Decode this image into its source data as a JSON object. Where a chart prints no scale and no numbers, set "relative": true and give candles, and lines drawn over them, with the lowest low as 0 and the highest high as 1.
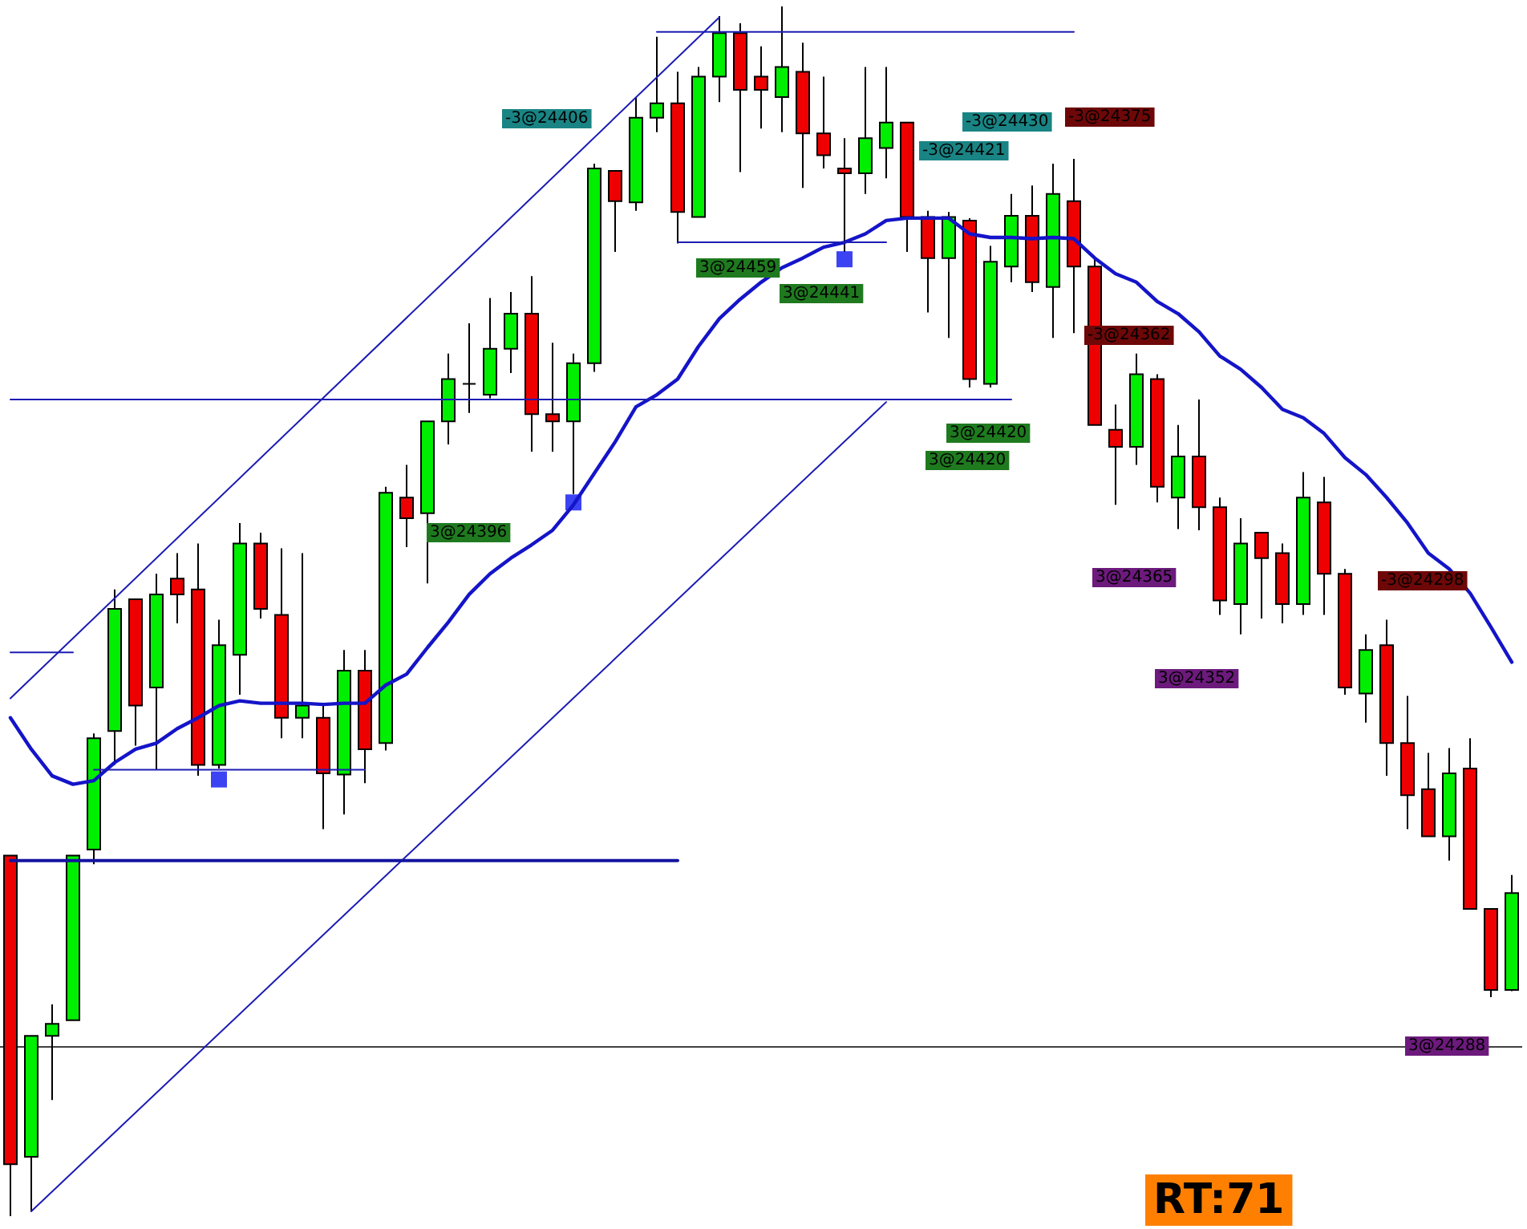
{
  "chart_data": {
    "type": "candlestick",
    "relative": true,
    "categories": [
      null,
      null,
      null,
      null,
      null,
      null,
      null,
      null,
      null,
      null,
      null,
      null,
      null,
      null,
      null,
      null,
      null,
      null,
      null,
      null,
      null,
      null,
      null,
      null,
      null,
      null,
      null,
      null,
      null,
      null,
      null,
      null,
      null,
      null,
      null,
      null,
      null,
      null,
      null,
      null,
      null,
      null,
      null,
      null,
      null,
      null,
      null,
      null,
      null,
      null,
      null,
      null,
      null,
      null,
      null,
      null,
      null,
      null,
      null,
      null,
      null,
      null,
      null,
      null,
      null,
      null,
      null,
      null,
      null,
      null,
      null,
      null,
      null
    ],
    "ohlc": [
      [
        0.298,
        0.298,
        0,
        0.043
      ],
      [
        0.049,
        0.149,
        0.004,
        0.149
      ],
      [
        0.149,
        0.175,
        0.096,
        0.159
      ],
      [
        0.162,
        0.298,
        0.162,
        0.298
      ],
      [
        0.303,
        0.399,
        0.291,
        0.395
      ],
      [
        0.401,
        0.518,
        0.373,
        0.502
      ],
      [
        0.51,
        0.51,
        0.389,
        0.422
      ],
      [
        0.437,
        0.531,
        0.369,
        0.514
      ],
      [
        0.527,
        0.548,
        0.49,
        0.514
      ],
      [
        0.518,
        0.556,
        0.364,
        0.373
      ],
      [
        0.373,
        0.493,
        0.37,
        0.472
      ],
      [
        0.464,
        0.573,
        0.431,
        0.556
      ],
      [
        0.556,
        0.565,
        0.494,
        0.502
      ],
      [
        0.497,
        0.552,
        0.395,
        0.412
      ],
      [
        0.412,
        0.548,
        0.395,
        0.422
      ],
      [
        0.412,
        0.422,
        0.32,
        0.366
      ],
      [
        0.365,
        0.468,
        0.332,
        0.451
      ],
      [
        0.451,
        0.468,
        0.358,
        0.386
      ],
      [
        0.391,
        0.603,
        0.385,
        0.598
      ],
      [
        0.594,
        0.621,
        0.553,
        0.577
      ],
      [
        0.581,
        0.657,
        0.523,
        0.657
      ],
      [
        0.657,
        0.713,
        0.638,
        0.692
      ],
      [
        0.688,
        0.738,
        0.664,
        0.688
      ],
      [
        0.679,
        0.759,
        0.676,
        0.717
      ],
      [
        0.717,
        0.764,
        0.697,
        0.746
      ],
      [
        0.746,
        0.777,
        0.632,
        0.663
      ],
      [
        0.663,
        0.722,
        0.632,
        0.657
      ],
      [
        0.657,
        0.713,
        0.597,
        0.705
      ],
      [
        0.705,
        0.87,
        0.698,
        0.866
      ],
      [
        0.864,
        0.864,
        0.797,
        0.839
      ],
      [
        0.838,
        0.925,
        0.831,
        0.908
      ],
      [
        0.908,
        0.975,
        0.896,
        0.92
      ],
      [
        0.92,
        0.946,
        0.804,
        0.83
      ],
      [
        0.826,
        0.95,
        0.826,
        0.942
      ],
      [
        0.942,
        0.992,
        0.921,
        0.978
      ],
      [
        0.978,
        0.986,
        0.863,
        0.931
      ],
      [
        0.942,
        0.967,
        0.899,
        0.931
      ],
      [
        0.925,
        1.0,
        0.896,
        0.95
      ],
      [
        0.946,
        0.97,
        0.85,
        0.895
      ],
      [
        0.895,
        0.942,
        0.866,
        0.877
      ],
      [
        0.866,
        0.891,
        0.797,
        0.862
      ],
      [
        0.862,
        0.95,
        0.845,
        0.891
      ],
      [
        0.883,
        0.95,
        0.858,
        0.904
      ],
      [
        0.904,
        0.904,
        0.797,
        0.826
      ],
      [
        0.826,
        0.831,
        0.747,
        0.792
      ],
      [
        0.792,
        0.83,
        0.726,
        0.826
      ],
      [
        0.823,
        0.825,
        0.685,
        0.692
      ],
      [
        0.688,
        0.802,
        0.685,
        0.789
      ],
      [
        0.785,
        0.845,
        0.772,
        0.827
      ],
      [
        0.827,
        0.852,
        0.764,
        0.772
      ],
      [
        0.768,
        0.87,
        0.726,
        0.845
      ],
      [
        0.839,
        0.874,
        0.73,
        0.785
      ],
      [
        0.785,
        0.791,
        0.654,
        0.654
      ],
      [
        0.65,
        0.671,
        0.588,
        0.636
      ],
      [
        0.636,
        0.713,
        0.621,
        0.696
      ],
      [
        0.692,
        0.696,
        0.59,
        0.603
      ],
      [
        0.594,
        0.654,
        0.568,
        0.628
      ],
      [
        0.628,
        0.675,
        0.567,
        0.586
      ],
      [
        0.586,
        0.594,
        0.497,
        0.509
      ],
      [
        0.506,
        0.577,
        0.481,
        0.556
      ],
      [
        0.565,
        0.565,
        0.494,
        0.544
      ],
      [
        0.548,
        0.556,
        0.49,
        0.506
      ],
      [
        0.506,
        0.615,
        0.497,
        0.594
      ],
      [
        0.59,
        0.611,
        0.497,
        0.531
      ],
      [
        0.531,
        0.535,
        0.431,
        0.437
      ],
      [
        0.432,
        0.481,
        0.408,
        0.468
      ],
      [
        0.472,
        0.493,
        0.364,
        0.391
      ],
      [
        0.391,
        0.43,
        0.32,
        0.348
      ],
      [
        0.353,
        0.383,
        0.314,
        0.314
      ],
      [
        0.314,
        0.387,
        0.294,
        0.366
      ],
      [
        0.37,
        0.395,
        0.254,
        0.254
      ],
      [
        0.254,
        0.254,
        0.181,
        0.187
      ],
      [
        0.187,
        0.282,
        0.186,
        0.267
      ]
    ],
    "series": [
      {
        "type": "line",
        "color": "#1414c8",
        "values": [
          0.412,
          0.386,
          0.364,
          0.357,
          0.36,
          0.375,
          0.386,
          0.391,
          0.403,
          0.412,
          0.422,
          0.426,
          0.424,
          0.424,
          0.424,
          0.423,
          0.424,
          0.424,
          0.439,
          0.448,
          0.47,
          0.491,
          0.514,
          0.531,
          0.544,
          0.555,
          0.567,
          0.588,
          0.614,
          0.64,
          0.669,
          0.679,
          0.692,
          0.719,
          0.742,
          0.758,
          0.772,
          0.784,
          0.792,
          0.801,
          0.805,
          0.812,
          0.823,
          0.825,
          0.825,
          0.825,
          0.812,
          0.809,
          0.809,
          0.808,
          0.809,
          0.808,
          0.792,
          0.779,
          0.772,
          0.756,
          0.746,
          0.731,
          0.711,
          0.7,
          0.685,
          0.667,
          0.66,
          0.647,
          0.627,
          0.613,
          0.594,
          0.573,
          0.548,
          0.535,
          0.515,
          0.487,
          0.458
        ]
      },
      {
        "type": "line",
        "color": "#1c1cb4",
        "values": [
          0.428,
          null,
          null,
          null,
          null,
          null,
          null,
          null,
          null,
          null,
          null,
          null,
          null,
          null,
          null,
          null,
          null,
          null,
          null,
          null,
          null,
          null,
          null,
          null,
          null,
          null,
          null,
          null,
          null,
          null,
          null,
          null,
          null,
          null,
          0.991,
          null,
          null,
          null,
          null,
          null,
          null,
          null,
          null,
          null,
          null,
          null,
          null,
          null,
          null,
          null,
          null,
          null,
          null,
          null,
          null,
          null,
          null,
          null,
          null,
          null,
          null,
          null,
          null,
          null,
          null,
          null,
          null,
          null,
          null,
          null,
          null,
          null,
          null
        ]
      },
      {
        "type": "line",
        "color": "#1c1cb4",
        "values": [
          null,
          0.004,
          null,
          null,
          null,
          null,
          null,
          null,
          null,
          null,
          null,
          null,
          null,
          null,
          null,
          null,
          null,
          null,
          null,
          null,
          null,
          null,
          null,
          null,
          null,
          null,
          null,
          null,
          null,
          null,
          null,
          null,
          null,
          null,
          null,
          null,
          null,
          null,
          null,
          null,
          null,
          null,
          0.673,
          null,
          null,
          null,
          null,
          null,
          null,
          null,
          null,
          null,
          null,
          null,
          null,
          null,
          null,
          null,
          null,
          null,
          null,
          null,
          null,
          null,
          null,
          null,
          null,
          null,
          null,
          null,
          null,
          null,
          null
        ]
      },
      {
        "type": "line",
        "color": "#1414a0",
        "values": [
          0.294,
          null,
          null,
          null,
          null,
          null,
          null,
          null,
          null,
          null,
          null,
          null,
          null,
          null,
          null,
          null,
          null,
          null,
          null,
          null,
          null,
          null,
          null,
          null,
          null,
          null,
          null,
          null,
          null,
          null,
          null,
          null,
          0.294,
          null,
          null,
          null,
          null,
          null,
          null,
          null,
          null,
          null,
          null,
          null,
          null,
          null,
          null,
          null,
          null,
          null,
          null,
          null,
          null,
          null,
          null,
          null,
          null,
          null,
          null,
          null,
          null,
          null,
          null,
          null,
          null,
          null,
          null,
          null,
          null,
          null,
          null,
          null,
          null
        ]
      },
      {
        "type": "line",
        "color": "#1c1cb4",
        "values": [
          0.466,
          null,
          null,
          0.466,
          null,
          null,
          null,
          null,
          null,
          null,
          null,
          null,
          null,
          null,
          null,
          null,
          null,
          null,
          null,
          null,
          null,
          null,
          null,
          null,
          null,
          null,
          null,
          null,
          null,
          null,
          null,
          null,
          null,
          null,
          null,
          null,
          null,
          null,
          null,
          null,
          null,
          null,
          null,
          null,
          null,
          null,
          null,
          null,
          null,
          null,
          null,
          null,
          null,
          null,
          null,
          null,
          null,
          null,
          null,
          null,
          null,
          null,
          null,
          null,
          null,
          null,
          null,
          null,
          null,
          null,
          null,
          null,
          null
        ]
      },
      {
        "type": "line",
        "color": "#1c1cb4",
        "values": [
          null,
          null,
          null,
          null,
          0.369,
          null,
          null,
          null,
          null,
          null,
          null,
          null,
          null,
          null,
          null,
          null,
          null,
          0.369,
          null,
          null,
          null,
          null,
          null,
          null,
          null,
          null,
          null,
          null,
          null,
          null,
          null,
          null,
          null,
          null,
          null,
          null,
          null,
          null,
          null,
          null,
          null,
          null,
          null,
          null,
          null,
          null,
          null,
          null,
          null,
          null,
          null,
          null,
          null,
          null,
          null,
          null,
          null,
          null,
          null,
          null,
          null,
          null,
          null,
          null,
          null,
          null,
          null,
          null,
          null,
          null,
          null,
          null,
          null
        ]
      },
      {
        "type": "line",
        "color": "#1c1cb4",
        "values": [
          null,
          null,
          null,
          null,
          null,
          null,
          null,
          null,
          null,
          null,
          null,
          null,
          null,
          null,
          null,
          null,
          null,
          null,
          null,
          null,
          null,
          null,
          null,
          null,
          null,
          null,
          null,
          null,
          null,
          null,
          null,
          null,
          0.805,
          null,
          null,
          null,
          null,
          null,
          null,
          null,
          null,
          null,
          0.805,
          null,
          null,
          null,
          null,
          null,
          null,
          null,
          null,
          null,
          null,
          null,
          null,
          null,
          null,
          null,
          null,
          null,
          null,
          null,
          null,
          null,
          null,
          null,
          null,
          null,
          null,
          null,
          null,
          null,
          null
        ]
      },
      {
        "type": "line",
        "color": "#1c1cb4",
        "values": [
          null,
          null,
          null,
          null,
          null,
          null,
          null,
          null,
          null,
          null,
          null,
          null,
          null,
          null,
          null,
          null,
          null,
          null,
          null,
          null,
          null,
          null,
          null,
          null,
          null,
          null,
          null,
          null,
          null,
          null,
          null,
          0.979,
          null,
          null,
          null,
          null,
          null,
          null,
          null,
          null,
          null,
          null,
          null,
          null,
          null,
          null,
          null,
          null,
          null,
          null,
          null,
          0.979,
          null,
          null,
          null,
          null,
          null,
          null,
          null,
          null,
          null,
          null,
          null,
          null,
          null,
          null,
          null,
          null,
          null,
          null,
          null,
          null,
          null
        ]
      },
      {
        "type": "line",
        "color": "#1c1cb4",
        "values": [
          0.675,
          null,
          null,
          null,
          null,
          null,
          null,
          null,
          null,
          null,
          null,
          null,
          null,
          null,
          null,
          null,
          null,
          null,
          null,
          null,
          null,
          null,
          null,
          null,
          null,
          null,
          null,
          null,
          null,
          null,
          null,
          null,
          null,
          null,
          null,
          null,
          null,
          null,
          null,
          null,
          null,
          null,
          null,
          null,
          null,
          null,
          null,
          null,
          0.675,
          null,
          null,
          null,
          null,
          null,
          null,
          null,
          null,
          null,
          null,
          null,
          null,
          null,
          null,
          null,
          null,
          null,
          null,
          null,
          null,
          null,
          null,
          null,
          null
        ]
      },
      {
        "type": "scatter",
        "marker": "square",
        "color": "#0a14f0",
        "values": [
          null,
          null,
          null,
          null,
          null,
          null,
          null,
          null,
          null,
          null,
          0.361,
          null,
          null,
          null,
          null,
          null,
          null,
          null,
          null,
          null,
          null,
          null,
          null,
          null,
          null,
          null,
          null,
          0.59,
          null,
          null,
          null,
          null,
          null,
          null,
          null,
          null,
          null,
          null,
          null,
          null,
          0.791,
          null,
          null,
          null,
          null,
          null,
          null,
          null,
          null,
          null,
          null,
          null,
          null,
          null,
          null,
          null,
          null,
          null,
          null,
          null,
          null,
          null,
          null,
          null,
          null,
          null,
          null,
          null,
          null,
          null,
          null,
          null,
          null
        ]
      }
    ],
    "ref_lines": [
      {
        "axis": "y",
        "value": 0.137,
        "color": "#404040"
      }
    ],
    "annotations": [
      "-3@24406",
      "3@24396",
      "3@24459",
      "3@24441",
      "-3@24430",
      "-3@24421",
      "3@24420",
      "3@24420",
      "-3@24375",
      "-3@24362",
      "3@24365",
      "3@24352",
      "-3@24298",
      "3@24288",
      "RT:71"
    ]
  }
}
